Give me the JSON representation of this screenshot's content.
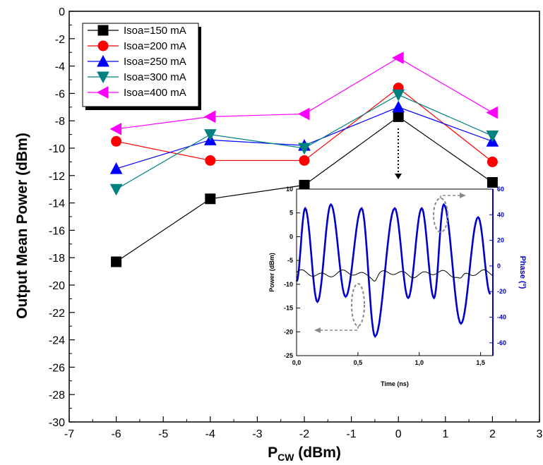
{
  "chart_data": [
    {
      "type": "line",
      "xlabel_main": "P",
      "xlabel_sub": "CW",
      "xlabel_unit": " (dBm)",
      "ylabel": "Output Mean Power (dBm)",
      "xlim": [
        -7,
        3
      ],
      "ylim": [
        -30,
        0
      ],
      "xticks": [
        "-7",
        "-6",
        "-5",
        "-4",
        "-3",
        "-2",
        "-1",
        "0",
        "1",
        "2",
        "3"
      ],
      "yticks": [
        "0",
        "-2",
        "-4",
        "-6",
        "-8",
        "-10",
        "-12",
        "-14",
        "-16",
        "-18",
        "-20",
        "-22",
        "-24",
        "-26",
        "-28",
        "-30"
      ],
      "x": [
        -6,
        -4,
        -2,
        0,
        2
      ],
      "legend_position": "top-left",
      "series": [
        {
          "name": "Isoa=150 mA",
          "color": "#000000",
          "marker": "square",
          "values": [
            -18.3,
            -13.7,
            -12.7,
            -7.7,
            -12.5
          ]
        },
        {
          "name": "Isoa=200 mA",
          "color": "#ff0000",
          "marker": "circle",
          "values": [
            -9.5,
            -10.9,
            -10.9,
            -5.6,
            -11.0
          ]
        },
        {
          "name": "Isoa=250 mA",
          "color": "#0000ff",
          "marker": "triangle-up",
          "values": [
            -11.5,
            -9.4,
            -9.8,
            -7.0,
            -9.5
          ]
        },
        {
          "name": "Isoa=300 mA",
          "color": "#008080",
          "marker": "triangle-down",
          "values": [
            -13.0,
            -9.0,
            -10.0,
            -6.1,
            -9.1
          ]
        },
        {
          "name": "Isoa=400 mA",
          "color": "#ff00ff",
          "marker": "triangle-left",
          "values": [
            -8.6,
            -7.7,
            -7.5,
            -3.4,
            -7.4
          ]
        }
      ]
    },
    {
      "type": "line",
      "inset": true,
      "xlabel": "Time (ns)",
      "ylabel_left": "Power (dBm)",
      "ylabel_right": "Phase (º)",
      "xlim": [
        0,
        1.6
      ],
      "ylim_left": [
        -25,
        10
      ],
      "ylim_right": [
        -70,
        60
      ],
      "xticks": [
        "0,0",
        "0,5",
        "1,0",
        "1,5"
      ],
      "yticks_left": [
        "10",
        "5",
        "0",
        "-5",
        "-10",
        "-15",
        "-20",
        "-25"
      ],
      "yticks_right": [
        "60",
        "40",
        "20",
        "0",
        "-20",
        "-40",
        "-60"
      ],
      "power_color": "#000000",
      "phase_color": "#0000cc",
      "power_baseline": -7.8,
      "phase_peaks": [
        {
          "t": 0.07,
          "v": 45
        },
        {
          "t": 0.17,
          "v": -28
        },
        {
          "t": 0.28,
          "v": 48
        },
        {
          "t": 0.4,
          "v": -24
        },
        {
          "t": 0.53,
          "v": 45
        },
        {
          "t": 0.64,
          "v": -55
        },
        {
          "t": 0.8,
          "v": 45
        },
        {
          "t": 0.91,
          "v": -25
        },
        {
          "t": 1.02,
          "v": 45
        },
        {
          "t": 1.12,
          "v": -25
        },
        {
          "t": 1.2,
          "v": 48
        },
        {
          "t": 1.34,
          "v": -45
        },
        {
          "t": 1.48,
          "v": 38
        },
        {
          "t": 1.58,
          "v": -22
        }
      ]
    }
  ]
}
